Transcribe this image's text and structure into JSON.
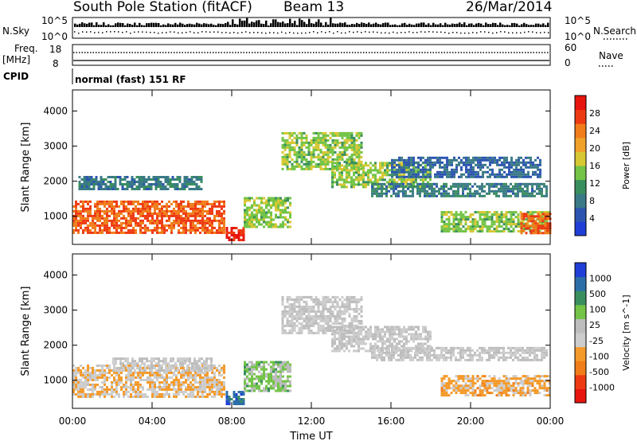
{
  "header": {
    "station": "South Pole Station (fitACF)",
    "beam": "Beam 13",
    "date": "26/Mar/2014"
  },
  "param_panels": {
    "nsky_label": "N.Sky",
    "nsky_tick_top": "10^5",
    "nsky_tick_bottom": "10^0",
    "nsearch_label": "N.Search",
    "freq_label": "Freq.",
    "freq_unit": "[MHz]",
    "freq_tick_top": "18",
    "freq_tick_bottom": "8",
    "nave_label": "Nave",
    "nave_tick_top": "60",
    "nave_tick_bottom": "0",
    "cpid_label": "CPID",
    "cpid_value": "normal (fast) 151 RF"
  },
  "colors": {
    "scale": [
      "#1f3fd6",
      "#2c55b0",
      "#3a7a86",
      "#3a8f5e",
      "#73c447",
      "#d7c732",
      "#f0a12a",
      "#f07d1a",
      "#ee3a12",
      "#e8140e"
    ],
    "velocity_scale": [
      "#e8140e",
      "#ee3a12",
      "#f07d1a",
      "#f49a2a",
      "#cccccc",
      "#bdbdbd",
      "#73c447",
      "#3a8f5e",
      "#2c6fa8",
      "#1f3fd6"
    ]
  },
  "chart_data": [
    {
      "type": "heatmap",
      "title": "",
      "xlabel": "",
      "ylabel": "Slant Range [km]",
      "x_ticks": [
        "00:00",
        "04:00",
        "08:00",
        "12:00",
        "16:00",
        "20:00",
        "00:00"
      ],
      "xlim_hours": [
        0,
        24
      ],
      "ylim": [
        200,
        4600
      ],
      "y_ticks": [
        1000,
        2000,
        3000,
        4000
      ],
      "colorbar": {
        "label": "Power [dB]",
        "ticks": [
          "4",
          "8",
          "12",
          "16",
          "20",
          "24",
          "28"
        ],
        "range": [
          0,
          30
        ]
      },
      "regions": [
        {
          "t0": 0.0,
          "t1": 7.6,
          "r0": 550,
          "r1": 1450,
          "value": 24
        },
        {
          "t0": 0.3,
          "t1": 6.5,
          "r0": 1750,
          "r1": 2150,
          "value": 8
        },
        {
          "t0": 7.7,
          "t1": 8.6,
          "r0": 350,
          "r1": 700,
          "value": 28
        },
        {
          "t0": 8.6,
          "t1": 11.0,
          "r0": 700,
          "r1": 1550,
          "value": 14
        },
        {
          "t0": 10.5,
          "t1": 14.5,
          "r0": 2350,
          "r1": 3400,
          "value": 14
        },
        {
          "t0": 13.0,
          "t1": 18.0,
          "r0": 1850,
          "r1": 2550,
          "value": 14
        },
        {
          "t0": 15.0,
          "t1": 23.8,
          "r0": 1550,
          "r1": 1950,
          "value": 8
        },
        {
          "t0": 16.0,
          "t1": 23.5,
          "r0": 2150,
          "r1": 2700,
          "value": 6
        },
        {
          "t0": 18.5,
          "t1": 24.0,
          "r0": 550,
          "r1": 1150,
          "value": 14
        },
        {
          "t0": 22.5,
          "t1": 24.0,
          "r0": 550,
          "r1": 1100,
          "value": 24
        }
      ]
    },
    {
      "type": "heatmap",
      "title": "",
      "xlabel": "Time UT",
      "ylabel": "Slant Range [km]",
      "x_ticks": [
        "00:00",
        "04:00",
        "08:00",
        "12:00",
        "16:00",
        "20:00",
        "00:00"
      ],
      "xlim_hours": [
        0,
        24
      ],
      "ylim": [
        200,
        4600
      ],
      "y_ticks": [
        1000,
        2000,
        3000,
        4000
      ],
      "colorbar": {
        "label": "Velocity [m s^-1]",
        "ticks": [
          "-1000",
          "-500",
          "-100",
          "-25",
          "25",
          "100",
          "500",
          "1000"
        ],
        "range": [
          -1200,
          1200
        ]
      },
      "regions": [
        {
          "t0": 0.0,
          "t1": 7.6,
          "r0": 550,
          "r1": 1450,
          "value": -200
        },
        {
          "t0": 2.0,
          "t1": 7.0,
          "r0": 1300,
          "r1": 1650,
          "value": 0
        },
        {
          "t0": 7.7,
          "t1": 8.6,
          "r0": 350,
          "r1": 700,
          "value": 800
        },
        {
          "t0": 8.6,
          "t1": 11.0,
          "r0": 700,
          "r1": 1550,
          "value": 300
        },
        {
          "t0": 10.5,
          "t1": 14.5,
          "r0": 2350,
          "r1": 3400,
          "value": 0
        },
        {
          "t0": 13.0,
          "t1": 18.0,
          "r0": 1850,
          "r1": 2550,
          "value": 0
        },
        {
          "t0": 15.0,
          "t1": 23.8,
          "r0": 1550,
          "r1": 1950,
          "value": 0
        },
        {
          "t0": 18.5,
          "t1": 24.0,
          "r0": 550,
          "r1": 1150,
          "value": -300
        }
      ]
    }
  ]
}
